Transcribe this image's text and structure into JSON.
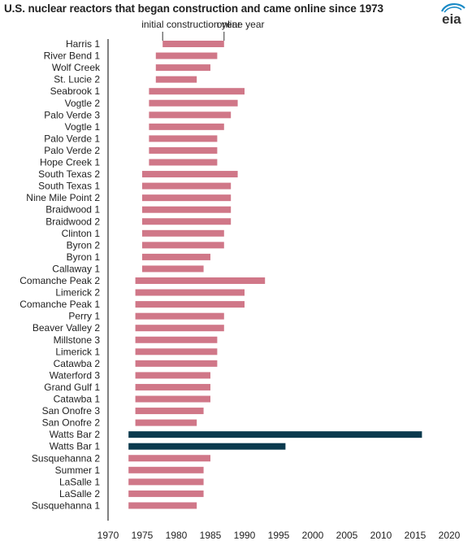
{
  "header": {
    "title": "U.S. nuclear reactors that began construction and came online since 1973",
    "logo_text": "eia"
  },
  "annotations": {
    "start_label": "initial construction year",
    "end_label": "online year"
  },
  "colors": {
    "default_bar": "#d07788",
    "highlight_bar": "#0b3a4e",
    "axis": "#000000",
    "logo_accent": "#1a8ac6"
  },
  "chart_data": {
    "type": "bar",
    "orientation": "horizontal",
    "title": "U.S. nuclear reactors that began construction and came online since 1973",
    "xlabel": "",
    "ylabel": "",
    "xlim": [
      1970,
      2020
    ],
    "xticks": [
      1970,
      1975,
      1980,
      1985,
      1990,
      1995,
      2000,
      2005,
      2010,
      2015,
      2020
    ],
    "grid": false,
    "series": [
      {
        "name": "initial construction year",
        "values": [
          1978,
          1977,
          1977,
          1977,
          1976,
          1976,
          1976,
          1976,
          1976,
          1976,
          1976,
          1975,
          1975,
          1975,
          1975,
          1975,
          1975,
          1975,
          1975,
          1975,
          1974,
          1974,
          1974,
          1974,
          1974,
          1974,
          1974,
          1974,
          1974,
          1974,
          1974,
          1974,
          1974,
          1973,
          1973,
          1973,
          1973,
          1973,
          1973,
          1973
        ]
      },
      {
        "name": "online year",
        "values": [
          1987,
          1986,
          1985,
          1983,
          1990,
          1989,
          1988,
          1987,
          1986,
          1986,
          1986,
          1989,
          1988,
          1988,
          1988,
          1988,
          1987,
          1987,
          1985,
          1984,
          1993,
          1990,
          1990,
          1987,
          1987,
          1986,
          1986,
          1986,
          1985,
          1985,
          1985,
          1984,
          1983,
          2016,
          1996,
          1985,
          1984,
          1984,
          1984,
          1983
        ]
      }
    ],
    "categories": [
      "Harris 1",
      "River Bend 1",
      "Wolf Creek",
      "St. Lucie 2",
      "Seabrook 1",
      "Vogtle 2",
      "Palo Verde 3",
      "Vogtle 1",
      "Palo Verde 1",
      "Palo Verde 2",
      "Hope Creek 1",
      "South Texas 2",
      "South Texas 1",
      "Nine Mile Point 2",
      "Braidwood 1",
      "Braidwood 2",
      "Clinton 1",
      "Byron 2",
      "Byron 1",
      "Callaway 1",
      "Comanche Peak 2",
      "Limerick 2",
      "Comanche Peak 1",
      "Perry 1",
      "Beaver Valley 2",
      "Millstone 3",
      "Limerick 1",
      "Catawba 2",
      "Waterford 3",
      "Grand Gulf 1",
      "Catawba 1",
      "San Onofre 3",
      "San Onofre 2",
      "Watts Bar 2",
      "Watts Bar 1",
      "Susquehanna 2",
      "Summer 1",
      "LaSalle 1",
      "LaSalle 2",
      "Susquehanna 1"
    ],
    "highlighted": [
      "Watts Bar 2",
      "Watts Bar 1"
    ]
  }
}
